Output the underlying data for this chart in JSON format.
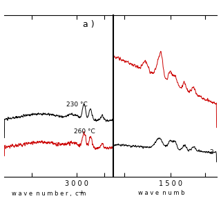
{
  "title": "a )",
  "label_230": "230 °C",
  "label_260": "260 °C",
  "color_230": "#000000",
  "color_260": "#cc0000",
  "background": "#ffffff",
  "linewidth": 0.7
}
